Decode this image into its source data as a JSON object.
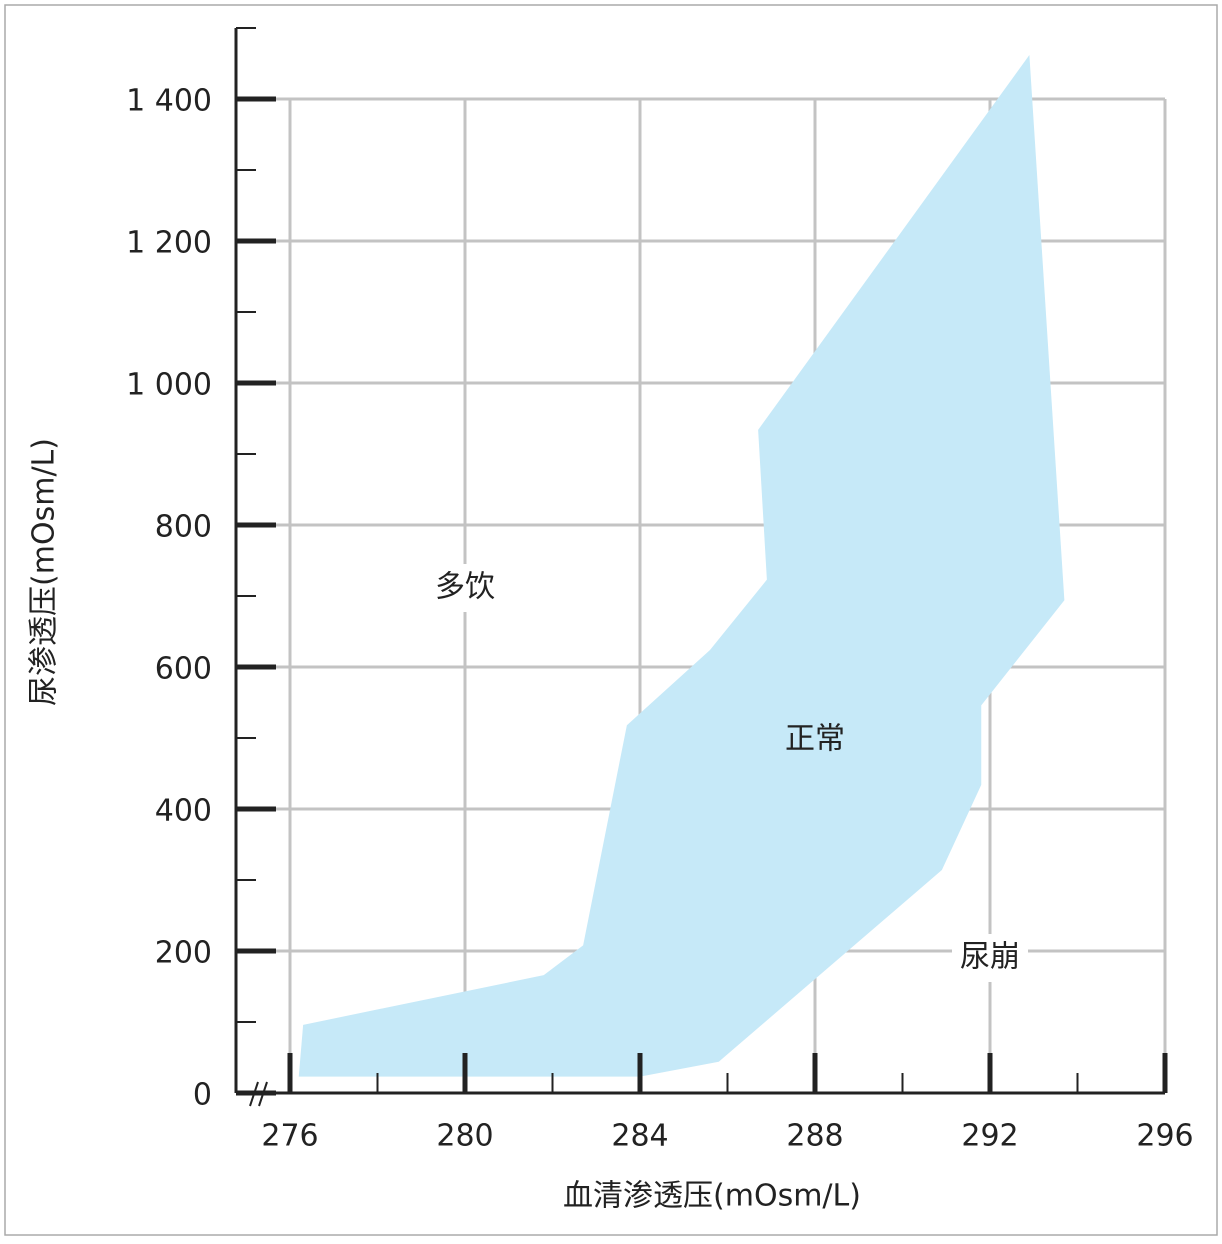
{
  "chart_data": {
    "type": "area",
    "x_label": "血清渗透压(mOsm/L)",
    "y_label": "尿渗透压(mOsm/L)",
    "xlim": [
      276,
      296
    ],
    "ylim": [
      0,
      1500
    ],
    "xticks": [
      276,
      280,
      284,
      288,
      292,
      296
    ],
    "xminorticks": [
      278,
      282,
      286,
      290,
      294
    ],
    "yticks": [
      0,
      200,
      400,
      600,
      800,
      {
        "value": 1000,
        "label": "1 000"
      },
      {
        "value": 1200,
        "label": "1 200"
      },
      {
        "value": 1400,
        "label": "1 400"
      }
    ],
    "yminorticks": [
      100,
      300,
      500,
      700,
      900,
      1100,
      1300,
      1500
    ],
    "grid": true,
    "region": {
      "color": "#c6e9f8",
      "x": [
        276.3,
        281.8,
        282.7,
        283.7,
        285.6,
        286.9,
        286.7,
        292.9,
        293.7,
        291.8,
        291.8,
        290.9,
        285.8,
        284.0,
        276.2
      ],
      "y": [
        96,
        166,
        208,
        518,
        624,
        723,
        934,
        1462,
        694,
        546,
        434,
        314,
        44,
        23,
        23
      ]
    },
    "annotations": [
      "多饮",
      "正常",
      "尿崩"
    ]
  }
}
